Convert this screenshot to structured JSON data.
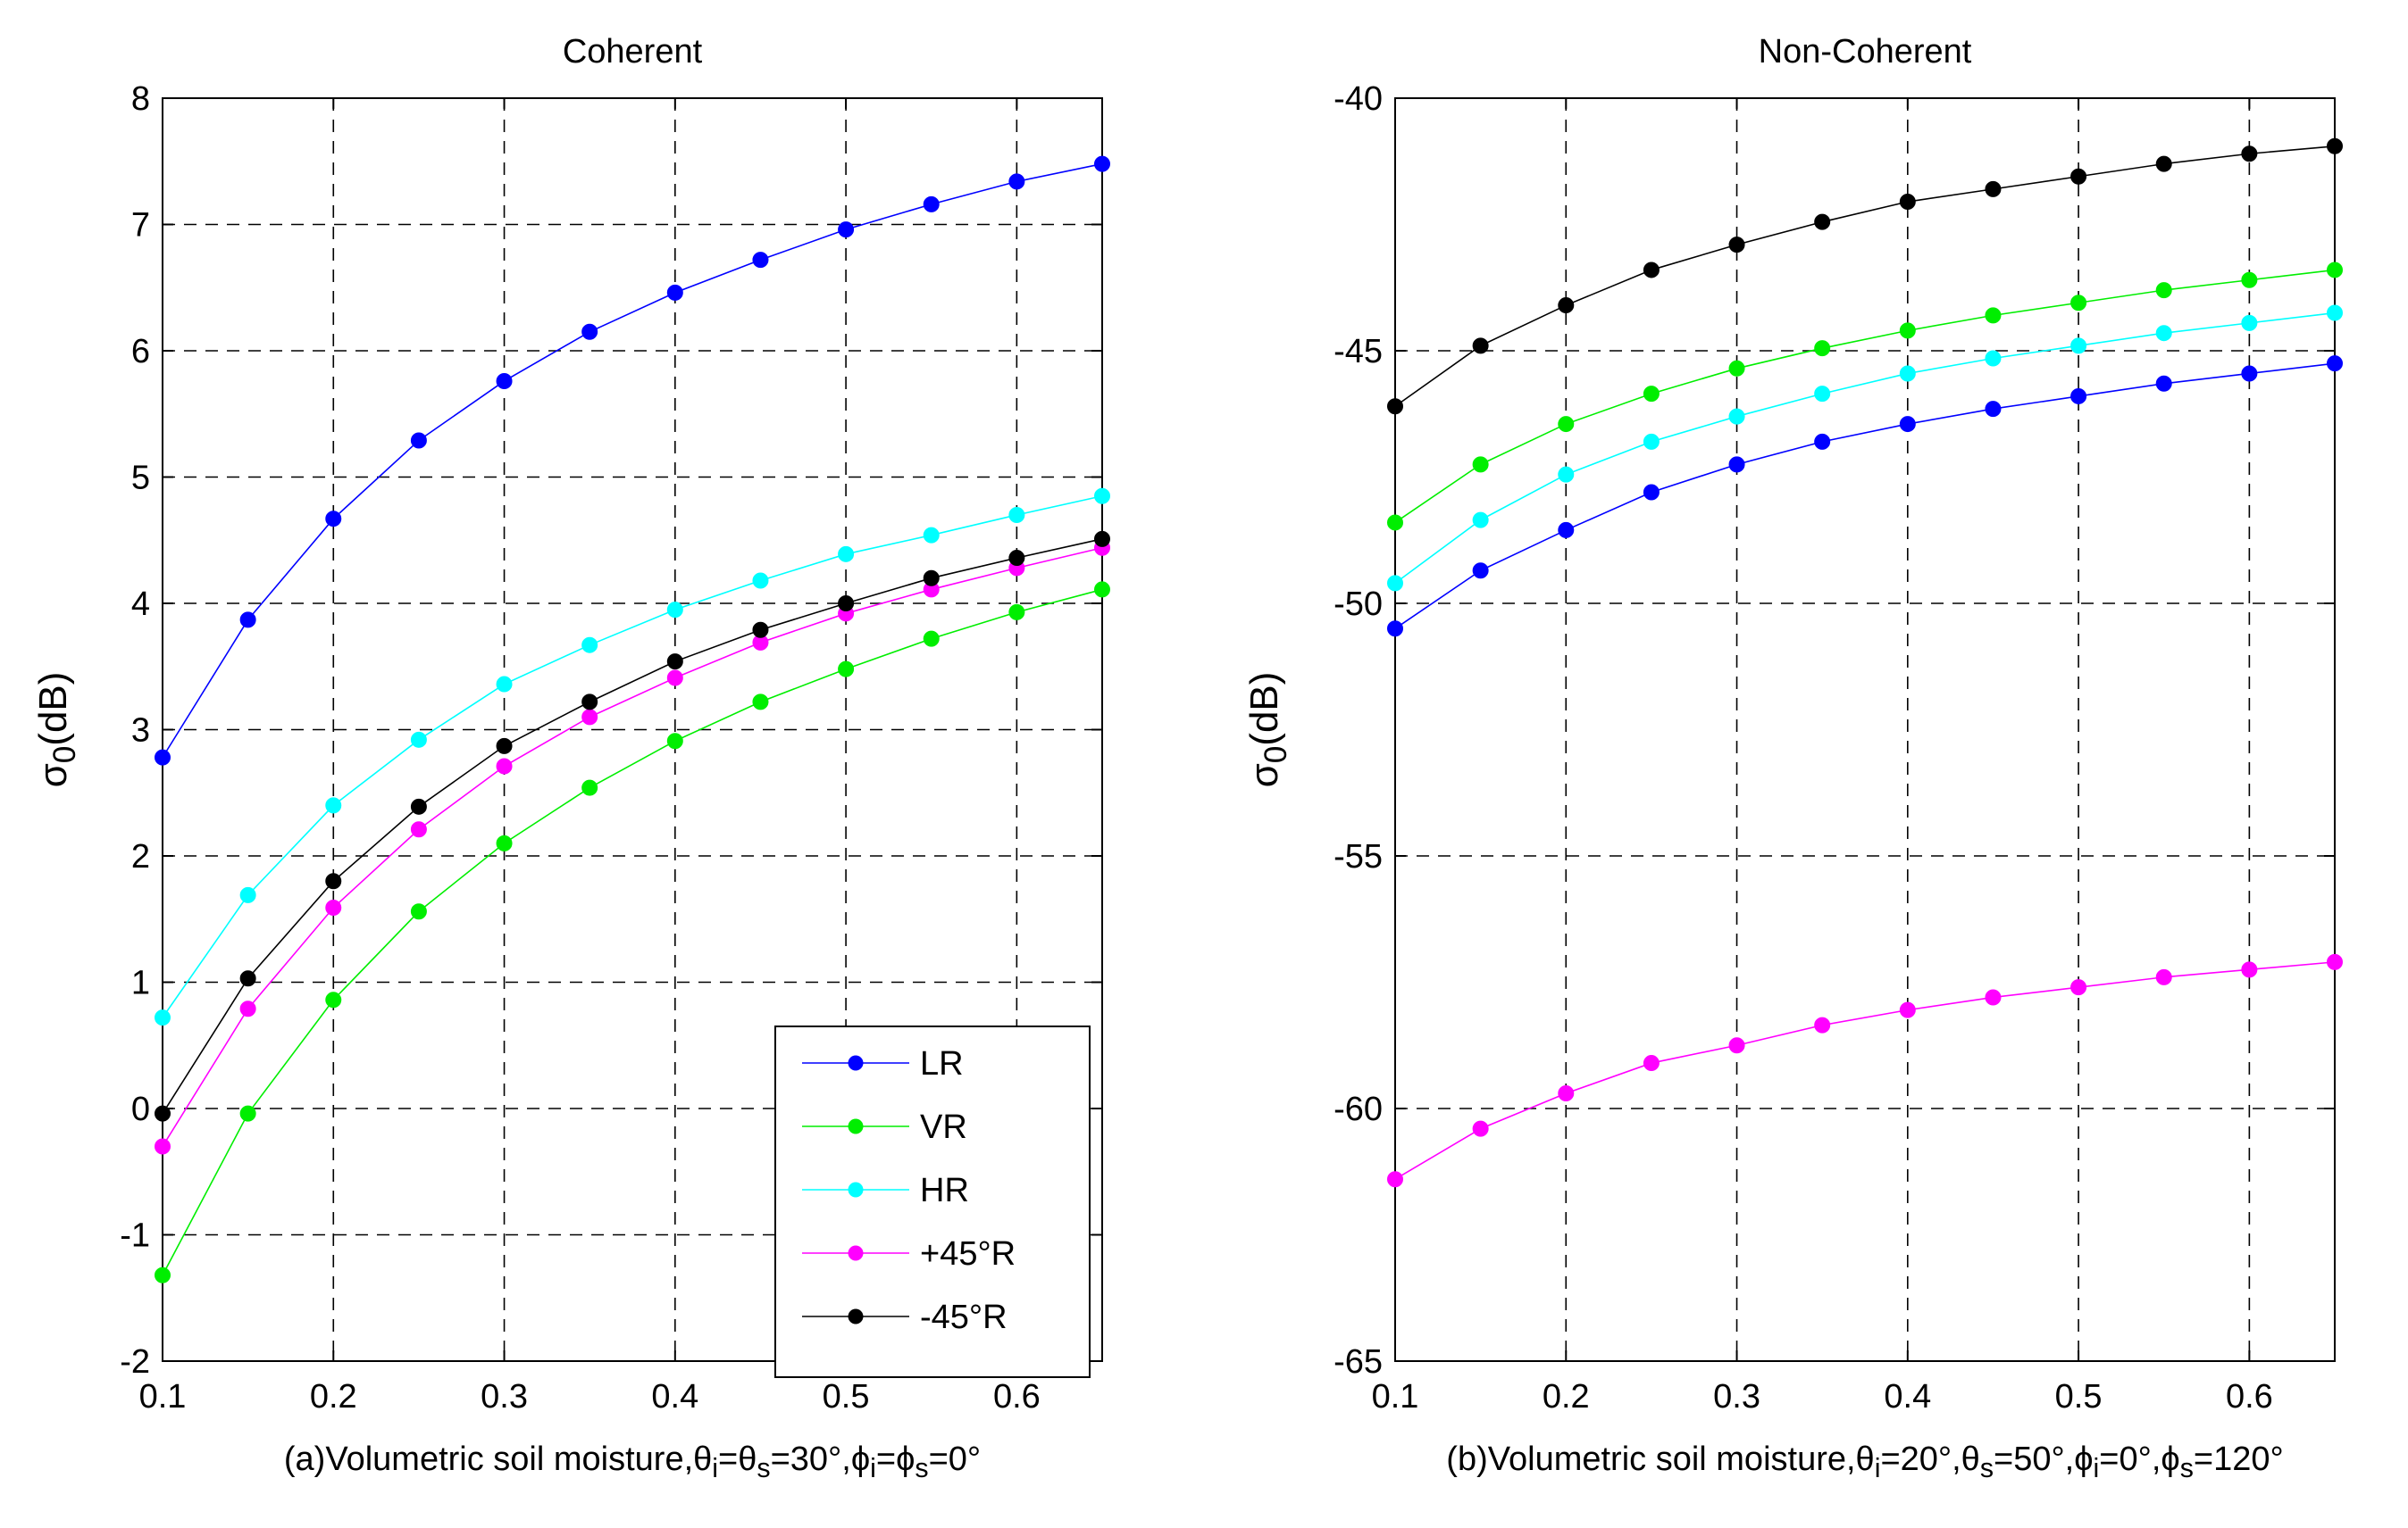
{
  "chart_data": [
    {
      "type": "line",
      "title": "Coherent",
      "xlabel_parts": [
        "(a)Volumetric soil moisture,",
        "θ",
        "i",
        "=",
        "θ",
        "s",
        "=30°,",
        "ϕ",
        "i",
        "=",
        "ϕ",
        "s",
        "=0°"
      ],
      "ylabel_parts": [
        "σ",
        "0",
        "(dB)"
      ],
      "xlim": [
        0.1,
        0.65
      ],
      "ylim": [
        -2,
        8
      ],
      "xticks": [
        0.1,
        0.2,
        0.3,
        0.4,
        0.5,
        0.6
      ],
      "yticks": [
        -2,
        -1,
        0,
        1,
        2,
        3,
        4,
        5,
        6,
        7,
        8
      ],
      "grid": true,
      "legend": "bottom-right",
      "x": [
        0.1,
        0.15,
        0.2,
        0.25,
        0.3,
        0.35,
        0.4,
        0.45,
        0.5,
        0.55,
        0.6,
        0.65
      ],
      "series": [
        {
          "name": "LR",
          "color": "#0000ff",
          "values": [
            2.78,
            3.87,
            4.67,
            5.29,
            5.76,
            6.15,
            6.46,
            6.72,
            6.96,
            7.16,
            7.34,
            7.48
          ]
        },
        {
          "name": "VR",
          "color": "#00ee00",
          "values": [
            -1.32,
            -0.04,
            0.86,
            1.56,
            2.1,
            2.54,
            2.91,
            3.22,
            3.48,
            3.72,
            3.93,
            4.11
          ]
        },
        {
          "name": "HR",
          "color": "#00ffff",
          "values": [
            0.72,
            1.69,
            2.4,
            2.92,
            3.36,
            3.67,
            3.95,
            4.18,
            4.39,
            4.54,
            4.7,
            4.85
          ]
        },
        {
          "name": "+45°R",
          "color": "#ff00ff",
          "values": [
            -0.3,
            0.79,
            1.59,
            2.21,
            2.71,
            3.1,
            3.41,
            3.69,
            3.92,
            4.11,
            4.28,
            4.44
          ]
        },
        {
          "name": "-45°R",
          "color": "#000000",
          "values": [
            -0.04,
            1.03,
            1.8,
            2.39,
            2.87,
            3.22,
            3.54,
            3.79,
            4.0,
            4.2,
            4.36,
            4.51
          ]
        }
      ]
    },
    {
      "type": "line",
      "title": "Non-Coherent",
      "xlabel_parts": [
        "(b)Volumetric soil moisture,",
        "θ",
        "i",
        "=20°,",
        "θ",
        "s",
        "=50°,",
        "ϕ",
        "i",
        "=0°,",
        "ϕ",
        "s",
        "=120°"
      ],
      "ylabel_parts": [
        "σ",
        "0",
        "(dB)"
      ],
      "xlim": [
        0.1,
        0.65
      ],
      "ylim": [
        -65,
        -40
      ],
      "xticks": [
        0.1,
        0.2,
        0.3,
        0.4,
        0.5,
        0.6
      ],
      "yticks": [
        -65,
        -60,
        -55,
        -50,
        -45,
        -40
      ],
      "grid": true,
      "legend": "none",
      "x": [
        0.1,
        0.15,
        0.2,
        0.25,
        0.3,
        0.35,
        0.4,
        0.45,
        0.5,
        0.55,
        0.6,
        0.65
      ],
      "series": [
        {
          "name": "LR",
          "color": "#0000ff",
          "values": [
            -50.5,
            -49.35,
            -48.55,
            -47.8,
            -47.25,
            -46.8,
            -46.45,
            -46.15,
            -45.9,
            -45.65,
            -45.45,
            -45.25
          ]
        },
        {
          "name": "VR",
          "color": "#00ee00",
          "values": [
            -48.4,
            -47.25,
            -46.45,
            -45.85,
            -45.35,
            -44.95,
            -44.6,
            -44.3,
            -44.05,
            -43.8,
            -43.6,
            -43.4
          ]
        },
        {
          "name": "HR",
          "color": "#00ffff",
          "values": [
            -49.6,
            -48.35,
            -47.45,
            -46.8,
            -46.3,
            -45.85,
            -45.45,
            -45.15,
            -44.9,
            -44.65,
            -44.45,
            -44.25
          ]
        },
        {
          "name": "+45°R",
          "color": "#ff00ff",
          "values": [
            -61.4,
            -60.4,
            -59.7,
            -59.1,
            -58.75,
            -58.35,
            -58.05,
            -57.8,
            -57.6,
            -57.4,
            -57.25,
            -57.1
          ]
        },
        {
          "name": "-45°R",
          "color": "#000000",
          "values": [
            -46.1,
            -44.9,
            -44.1,
            -43.4,
            -42.9,
            -42.45,
            -42.05,
            -41.8,
            -41.55,
            -41.3,
            -41.1,
            -40.95
          ]
        }
      ]
    }
  ]
}
